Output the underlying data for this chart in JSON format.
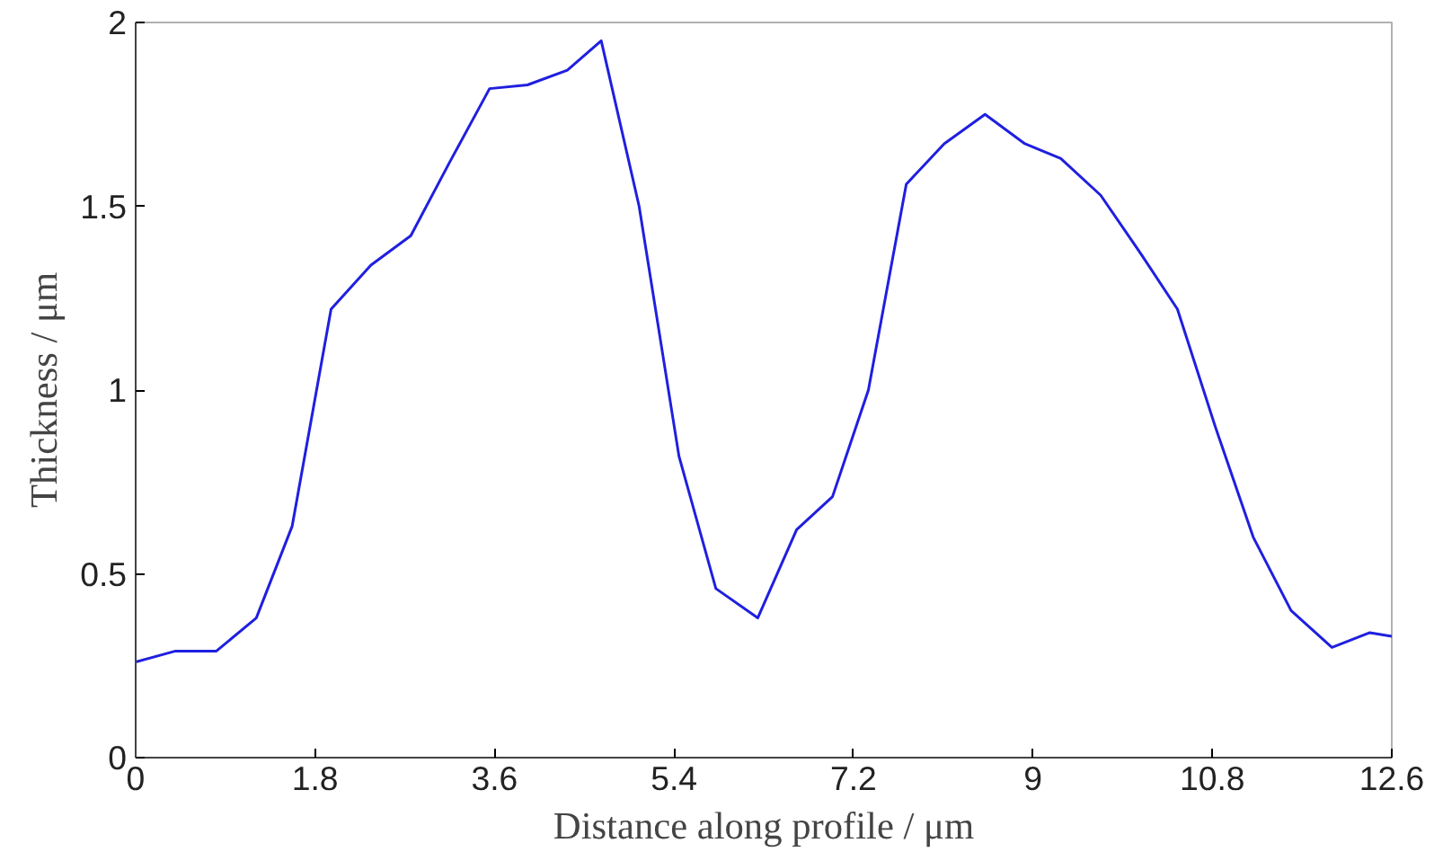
{
  "chart_data": {
    "type": "line",
    "xlabel": "Distance along profile / μm",
    "ylabel": "Thickness / μm",
    "x": [
      0,
      0.4,
      0.81,
      1.21,
      1.57,
      1.96,
      2.36,
      2.76,
      3.15,
      3.55,
      3.93,
      4.33,
      4.67,
      5.05,
      5.45,
      5.82,
      6.24,
      6.63,
      6.99,
      7.35,
      7.73,
      8.11,
      8.52,
      8.92,
      9.28,
      9.68,
      10.06,
      10.45,
      10.83,
      11.21,
      11.59,
      12.0,
      12.38,
      12.6
    ],
    "series": [
      {
        "color": "#1f1fe0",
        "values": [
          0.26,
          0.29,
          0.29,
          0.38,
          0.63,
          1.22,
          1.34,
          1.42,
          1.62,
          1.82,
          1.83,
          1.87,
          1.95,
          1.5,
          0.82,
          0.46,
          0.38,
          0.62,
          0.71,
          1.0,
          1.56,
          1.67,
          1.75,
          1.67,
          1.63,
          1.53,
          1.38,
          1.22,
          0.9,
          0.6,
          0.4,
          0.3,
          0.34,
          0.33
        ]
      }
    ],
    "xlim": [
      0,
      12.6
    ],
    "ylim": [
      0,
      2
    ],
    "xticks": [
      0,
      1.8,
      3.6,
      5.4,
      7.2,
      9,
      10.8,
      12.6
    ],
    "yticks": [
      0,
      0.5,
      1,
      1.5,
      2
    ],
    "grid": false,
    "line_style": "solid"
  }
}
